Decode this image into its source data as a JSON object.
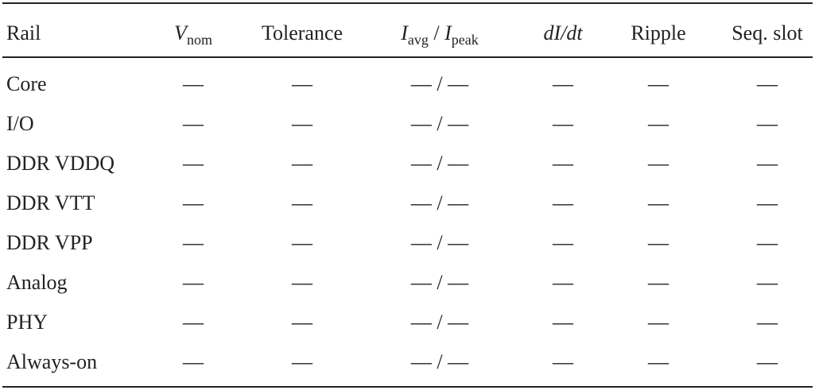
{
  "table": {
    "header": [
      [
        {
          "text": "Rail",
          "style": "normal"
        }
      ],
      [
        {
          "text": "V",
          "style": "italic"
        },
        {
          "text": "nom",
          "style": "sub"
        }
      ],
      [
        {
          "text": "Tolerance",
          "style": "normal"
        }
      ],
      [
        {
          "text": "I",
          "style": "italic"
        },
        {
          "text": "avg",
          "style": "sub"
        },
        {
          "text": " / ",
          "style": "normal"
        },
        {
          "text": "I",
          "style": "italic"
        },
        {
          "text": "peak",
          "style": "sub"
        }
      ],
      [
        {
          "text": "dI/dt",
          "style": "italic"
        }
      ],
      [
        {
          "text": "Ripple",
          "style": "normal"
        }
      ],
      [
        {
          "text": "Seq. slot",
          "style": "normal"
        }
      ]
    ],
    "rows": [
      [
        "Core",
        "—",
        "—",
        "— / —",
        "—",
        "—",
        "—"
      ],
      [
        "I/O",
        "—",
        "—",
        "— / —",
        "—",
        "—",
        "—"
      ],
      [
        "DDR VDDQ",
        "—",
        "—",
        "— / —",
        "—",
        "—",
        "—"
      ],
      [
        "DDR VTT",
        "—",
        "—",
        "— / —",
        "—",
        "—",
        "—"
      ],
      [
        "DDR VPP",
        "—",
        "—",
        "— / —",
        "—",
        "—",
        "—"
      ],
      [
        "Analog",
        "—",
        "—",
        "— / —",
        "—",
        "—",
        "—"
      ],
      [
        "PHY",
        "—",
        "—",
        "— / —",
        "—",
        "—",
        "—"
      ],
      [
        "Always-on",
        "—",
        "—",
        "— / —",
        "—",
        "—",
        "—"
      ]
    ]
  }
}
